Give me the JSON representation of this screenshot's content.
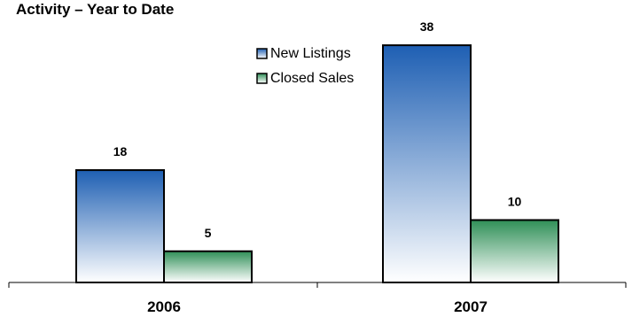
{
  "chart_data": {
    "type": "bar",
    "title": "Activity – Year to Date",
    "categories": [
      "2006",
      "2007"
    ],
    "series": [
      {
        "name": "New Listings",
        "values": [
          18,
          38
        ]
      },
      {
        "name": "Closed Sales",
        "values": [
          5,
          10
        ]
      }
    ],
    "ylim": [
      0,
      40
    ],
    "grid": false,
    "legend_position": "top-center",
    "colors": {
      "new_listings_top": "#1e5fb3",
      "new_listings_bottom": "#ffffff",
      "closed_sales_top": "#2f8f57",
      "closed_sales_bottom": "#ffffff"
    }
  }
}
